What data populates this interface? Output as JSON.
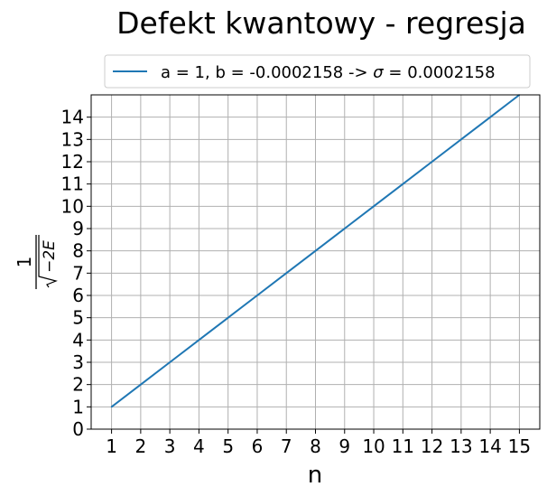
{
  "chart_data": {
    "type": "line",
    "title": "Defekt kwantowy - regresja",
    "xlabel": "n",
    "ylabel": {
      "numerator": "1",
      "radicand": "−2E"
    },
    "x": [
      1,
      2,
      3,
      4,
      5,
      6,
      7,
      8,
      9,
      10,
      11,
      12,
      13,
      14,
      15
    ],
    "series": [
      {
        "name": "a = 1, b = -0.0002158 -> σ = 0.0002158",
        "name_parts": [
          "a = 1, b = -0.0002158 -> ",
          "σ",
          " = 0.0002158"
        ],
        "values": [
          1,
          2,
          3,
          4,
          5,
          6,
          7,
          8,
          9,
          10,
          11,
          12,
          13,
          14,
          15
        ],
        "color": "#1f77b4"
      }
    ],
    "xlim": [
      0.3,
      15.7
    ],
    "ylim": [
      0,
      15
    ],
    "xticks": [
      "1",
      "2",
      "3",
      "4",
      "5",
      "6",
      "7",
      "8",
      "9",
      "10",
      "11",
      "12",
      "13",
      "14",
      "15"
    ],
    "yticks": [
      "0",
      "1",
      "2",
      "3",
      "4",
      "5",
      "6",
      "7",
      "8",
      "9",
      "10",
      "11",
      "12",
      "13",
      "14"
    ],
    "grid": true,
    "grid_color": "#b0b0b0",
    "legend_position": "top-center"
  }
}
